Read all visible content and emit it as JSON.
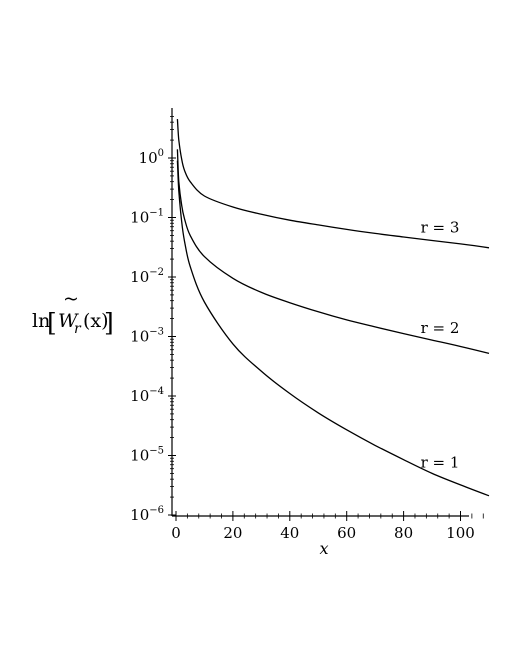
{
  "chart_data": {
    "type": "line",
    "xlabel": "x",
    "ylabel": {
      "prefix": "ln",
      "tilde": "~",
      "symbol": "W",
      "subscript": "r",
      "argument": "(x)"
    },
    "xlim": [
      -1,
      110
    ],
    "ylim": [
      1e-06,
      5
    ],
    "yscale": "log",
    "grid": false,
    "x_ticks": [
      0,
      20,
      40,
      60,
      80,
      100
    ],
    "y_ticks": [
      {
        "base": "10",
        "exp": "0",
        "value": 1
      },
      {
        "base": "10",
        "exp": "−1",
        "value": 0.1
      },
      {
        "base": "10",
        "exp": "−2",
        "value": 0.01
      },
      {
        "base": "10",
        "exp": "−3",
        "value": 0.001
      },
      {
        "base": "10",
        "exp": "−4",
        "value": 0.0001
      },
      {
        "base": "10",
        "exp": "−5",
        "value": 1e-05
      },
      {
        "base": "10",
        "exp": "−6",
        "value": 1e-06
      }
    ],
    "series": [
      {
        "name": "r = 3",
        "x": [
          0.5,
          1,
          2,
          3,
          5,
          10,
          20,
          30,
          40,
          50,
          60,
          70,
          80,
          90,
          100,
          110
        ],
        "y": [
          4.5,
          2.0,
          0.95,
          0.62,
          0.4,
          0.23,
          0.15,
          0.113,
          0.09,
          0.075,
          0.063,
          0.054,
          0.047,
          0.041,
          0.036,
          0.031
        ]
      },
      {
        "name": "r = 2",
        "x": [
          0.5,
          1,
          2,
          3,
          5,
          10,
          20,
          30,
          40,
          50,
          60,
          70,
          80,
          90,
          100,
          110
        ],
        "y": [
          1.4,
          0.4,
          0.16,
          0.095,
          0.05,
          0.022,
          0.0095,
          0.0055,
          0.0037,
          0.0026,
          0.0019,
          0.00145,
          0.00112,
          0.00087,
          0.00068,
          0.00052
        ]
      },
      {
        "name": "r = 1",
        "x": [
          0.5,
          1,
          2,
          3,
          5,
          10,
          20,
          30,
          40,
          50,
          60,
          70,
          80,
          90,
          100,
          110
        ],
        "y": [
          0.9,
          0.28,
          0.085,
          0.04,
          0.015,
          0.0038,
          0.00075,
          0.00026,
          0.00011,
          5.2e-05,
          2.7e-05,
          1.48e-05,
          8.5e-06,
          5e-06,
          3.2e-06,
          2.1e-06
        ]
      }
    ]
  }
}
